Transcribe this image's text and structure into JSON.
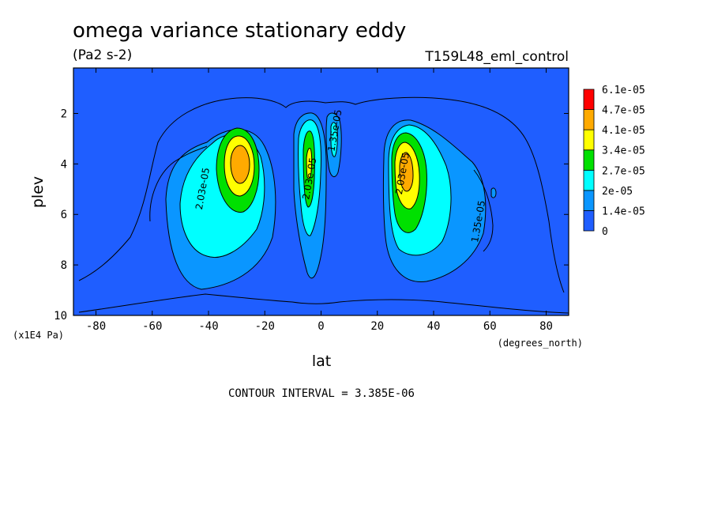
{
  "title": "omega variance stationary eddy",
  "units": "(Pa2 s-2)",
  "run_name": "T159L48_eml_control",
  "footer": "CONTOUR INTERVAL = 3.385E-06",
  "chart_data": {
    "type": "heatmap",
    "xlabel": "lat",
    "x_units": "(degrees_north)",
    "ylabel": "plev",
    "y_units": "(x1E4 Pa)",
    "xlim": [
      -88,
      88
    ],
    "ylim": [
      10,
      0.2
    ],
    "x_ticks": [
      -80,
      -60,
      -40,
      -20,
      0,
      20,
      40,
      60,
      80
    ],
    "y_ticks": [
      2,
      4,
      6,
      8,
      10
    ],
    "contour_interval": 3.385e-06,
    "colorbar": {
      "levels": [
        "0",
        "1.4e-05",
        "2e-05",
        "2.7e-05",
        "3.4e-05",
        "4.1e-05",
        "4.7e-05",
        "6.1e-05"
      ],
      "colors": [
        "#1f5eff",
        "#0a96ff",
        "#00ffff",
        "#00e000",
        "#ffff00",
        "#ffaa00",
        "#ff0000"
      ]
    },
    "contour_labels": [
      {
        "text": "2.03e-05",
        "lat": -41,
        "plev": 5.0
      },
      {
        "text": "2.03e-05",
        "lat": -3,
        "plev": 4.6
      },
      {
        "text": "1.35e-05",
        "lat": 57,
        "plev": 6.3
      },
      {
        "text": "2.03e-05",
        "lat": 30,
        "plev": 4.4
      },
      {
        "text": "1.35e-05",
        "lat": 6,
        "plev": 2.7
      }
    ],
    "features": [
      {
        "name": "southern-midlatitude-maximum",
        "lat": -30,
        "plev": 4.0,
        "value": 4.4e-05
      },
      {
        "name": "equatorial-maximum",
        "lat": -5,
        "plev": 4.0,
        "value": 3.1e-05
      },
      {
        "name": "northern-midlatitude-maximum",
        "lat": 29,
        "plev": 4.0,
        "value": 4.4e-05
      }
    ]
  }
}
